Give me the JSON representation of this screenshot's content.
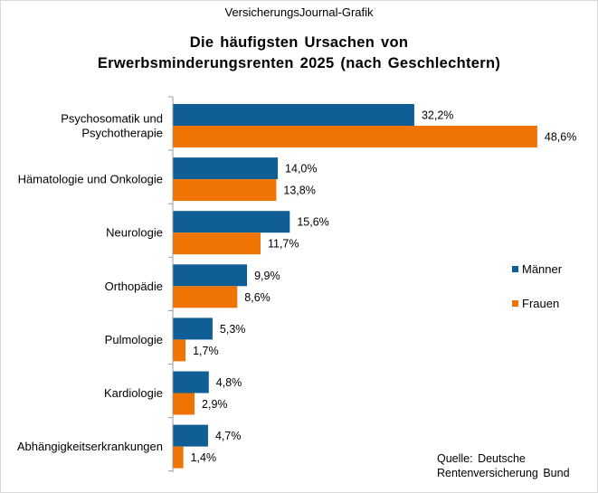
{
  "source_top": "VersicherungsJournal-Grafik",
  "title_line1": "Die häufigsten Ursachen von",
  "title_line2": "Erwerbsminderungsrenten 2025 (nach Geschlechtern)",
  "footer": {
    "line1": "Quelle: Deutsche",
    "line2": "Rentenversicherung Bund"
  },
  "colors": {
    "maenner": "#0f5e95",
    "frauen": "#ef7404"
  },
  "chart_data": {
    "type": "bar",
    "orientation": "horizontal",
    "categories": [
      [
        "Psychosomatik und",
        "Psychotherapie"
      ],
      [
        "Hämatologie und Onkologie"
      ],
      [
        "Neurologie"
      ],
      [
        "Orthopädie"
      ],
      [
        "Pulmologie"
      ],
      [
        "Kardiologie"
      ],
      [
        "Abhängigkeitserkrankungen"
      ]
    ],
    "series": [
      {
        "name": "Männer",
        "values": [
          32.2,
          14.0,
          15.6,
          9.9,
          5.3,
          4.8,
          4.7
        ],
        "labels": [
          "32,2%",
          "14,0%",
          "15,6%",
          "9,9%",
          "5,3%",
          "4,8%",
          "4,7%"
        ]
      },
      {
        "name": "Frauen",
        "values": [
          48.6,
          13.8,
          11.7,
          8.6,
          1.7,
          2.9,
          1.4
        ],
        "labels": [
          "48,6%",
          "13,8%",
          "11,7%",
          "8,6%",
          "1,7%",
          "2,9%",
          "1,4%"
        ]
      }
    ],
    "legend_position": "right",
    "grid": false
  }
}
